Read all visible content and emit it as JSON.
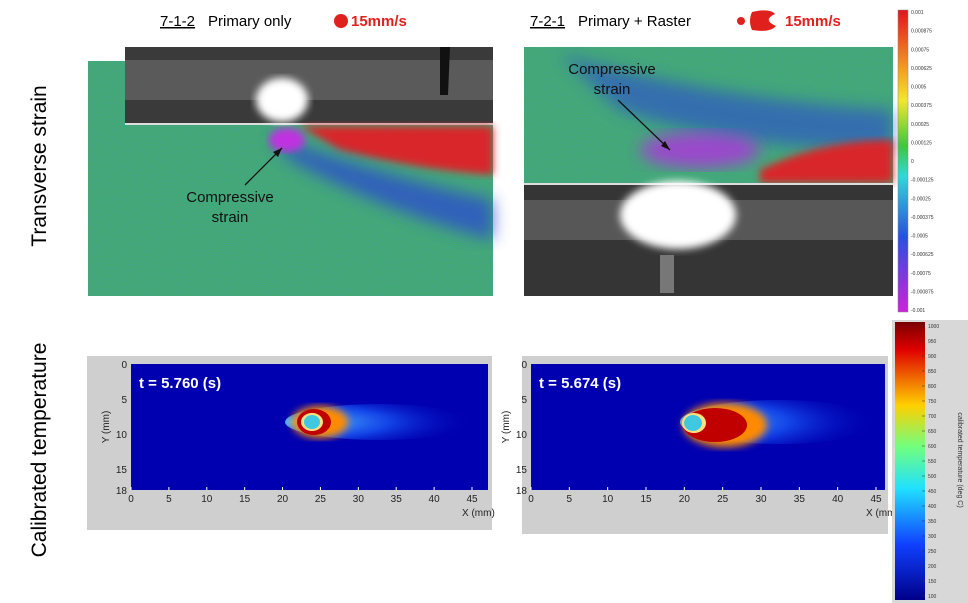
{
  "columns": [
    {
      "id": "7-1-2",
      "label": "Primary only",
      "speed": "15mm/s",
      "time": "t = 5.760 (s)"
    },
    {
      "id": "7-2-1",
      "label": "Primary + Raster",
      "speed": "15mm/s",
      "time": "t = 5.674 (s)"
    }
  ],
  "row_labels": [
    "Transverse strain",
    "Calibrated temperature"
  ],
  "annotations": [
    [
      "Compressive",
      "strain"
    ],
    [
      "Compressive",
      "strain"
    ]
  ],
  "strain_scale": [
    "0.001",
    "0.000875",
    "0.00075",
    "0.000625",
    "0.0005",
    "0.000375",
    "0.00025",
    "0.000125",
    "0",
    "-0.000125",
    "-0.00025",
    "-0.000375",
    "-0.0005",
    "-0.000625",
    "-0.00075",
    "-0.000875",
    "-0.001"
  ],
  "temperature_scale": {
    "title": "calibrated temperature (deg C)",
    "labels": [
      "1000",
      "950",
      "900",
      "850",
      "800",
      "750",
      "700",
      "650",
      "600",
      "550",
      "500",
      "450",
      "400",
      "350",
      "300",
      "250",
      "200",
      "150",
      "100"
    ]
  },
  "plot_axes": {
    "x_label": "X (mm)",
    "y_label": "Y (mm)",
    "x_ticks": [
      "0",
      "5",
      "10",
      "15",
      "20",
      "25",
      "30",
      "35",
      "40",
      "45"
    ],
    "y_ticks": [
      "0",
      "5",
      "10",
      "15",
      "18"
    ]
  }
}
